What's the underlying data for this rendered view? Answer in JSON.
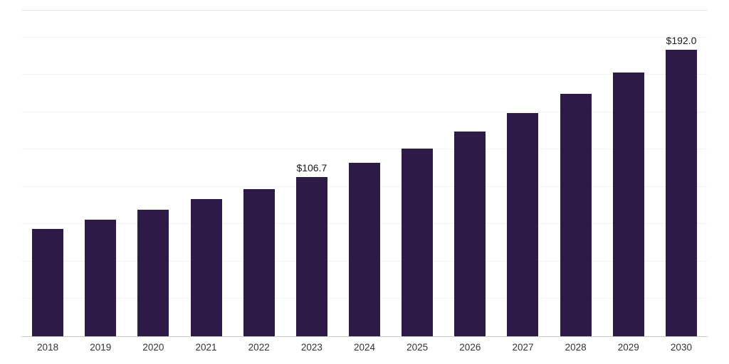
{
  "chart_data": {
    "type": "bar",
    "title": "",
    "xlabel": "",
    "ylabel": "",
    "categories": [
      "2018",
      "2019",
      "2020",
      "2021",
      "2022",
      "2023",
      "2024",
      "2025",
      "2026",
      "2027",
      "2028",
      "2029",
      "2030"
    ],
    "values": [
      72.0,
      78.1,
      84.8,
      91.9,
      98.6,
      106.7,
      116.2,
      125.7,
      137.1,
      149.5,
      162.4,
      176.7,
      192.0
    ],
    "data_labels": [
      {
        "category": "2023",
        "text": "$106.7"
      },
      {
        "category": "2030",
        "text": "$192.0"
      }
    ],
    "ylim": [
      0,
      218
    ],
    "grid": true,
    "legend": false,
    "bar_color": "#2e1a47",
    "gridline_values": [
      25,
      50,
      75,
      100,
      125,
      150,
      175,
      200
    ]
  }
}
